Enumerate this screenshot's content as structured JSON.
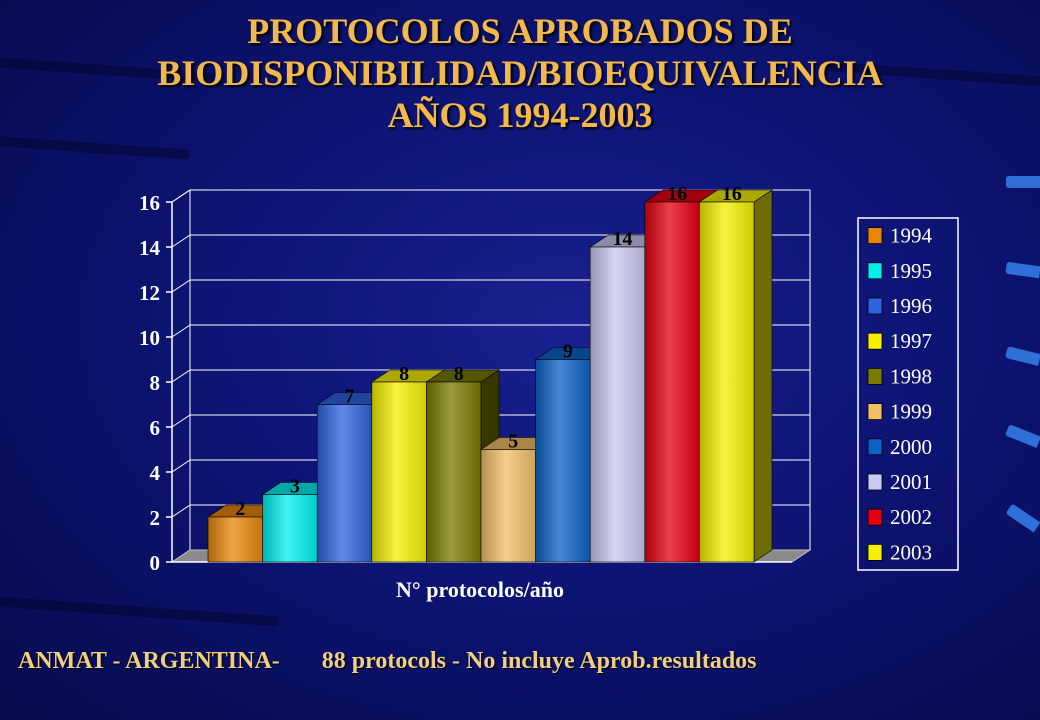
{
  "slide": {
    "title_lines": [
      "PROTOCOLOS APROBADOS DE",
      "BIODISPONIBILIDAD/BIOEQUIVALENCIA",
      "AÑOS 1994-2003"
    ],
    "footer_left": "ANMAT - ARGENTINA-",
    "footer_right": "88 protocols - No incluye Aprob.resultados",
    "background_color": "#0d1474",
    "title_color": "#f2b94a"
  },
  "chart_data": {
    "type": "bar",
    "categories": [
      "1994",
      "1995",
      "1996",
      "1997",
      "1998",
      "1999",
      "2000",
      "2001",
      "2002",
      "2003"
    ],
    "values": [
      2,
      3,
      7,
      8,
      8,
      5,
      9,
      14,
      16,
      16
    ],
    "data_labels": [
      "2",
      "3",
      "7",
      "8",
      "8",
      "5",
      "9",
      "14",
      "16",
      "16"
    ],
    "colors": [
      "#e8860a",
      "#00f0f0",
      "#2f62e0",
      "#f4f000",
      "#7a7a00",
      "#f2bf66",
      "#0b62c8",
      "#c8c8f0",
      "#e40010",
      "#f4f000"
    ],
    "xlabel": "N° protocolos/año",
    "ylabel": "",
    "ylim": [
      0,
      16
    ],
    "yticks": [
      "0",
      "2",
      "4",
      "6",
      "8",
      "10",
      "12",
      "14",
      "16"
    ],
    "grid": true,
    "legend": {
      "position": "right",
      "entries": [
        "1994",
        "1995",
        "1996",
        "1997",
        "1998",
        "1999",
        "2000",
        "2001",
        "2002",
        "2003"
      ]
    }
  }
}
